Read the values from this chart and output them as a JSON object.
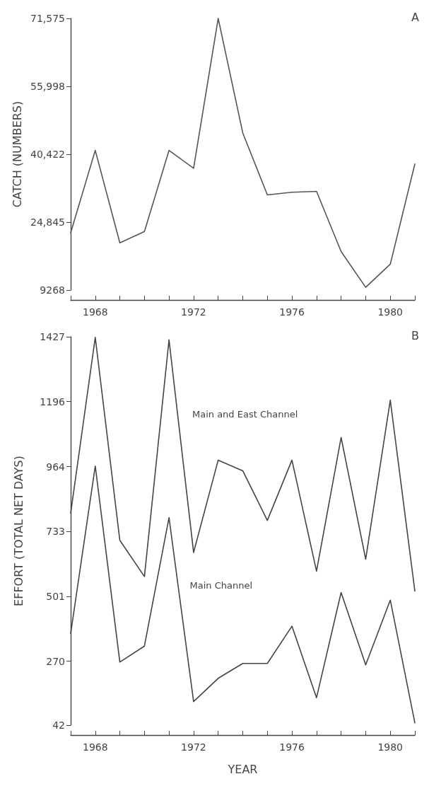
{
  "chart_data": [
    {
      "type": "line",
      "ylabel": "CATCH (NUMBERS)",
      "annotations": [
        "A"
      ],
      "grid": false,
      "legend": false,
      "marker": "none",
      "line_style": "solid",
      "x": [
        1967,
        1968,
        1969,
        1970,
        1971,
        1972,
        1973,
        1974,
        1975,
        1976,
        1977,
        1978,
        1979,
        1980,
        1981
      ],
      "series": [
        {
          "color": "#555555",
          "values": [
            22400,
            41300,
            20100,
            22700,
            41300,
            37200,
            71575,
            45300,
            31100,
            31700,
            31900,
            18100,
            9900,
            15200,
            38200
          ]
        }
      ],
      "xlim": [
        1967,
        1981
      ],
      "xticks": [
        {
          "value": 1967,
          "label": null
        },
        1968,
        {
          "value": 1969,
          "label": null
        },
        {
          "value": 1970,
          "label": null
        },
        {
          "value": 1971,
          "label": null
        },
        1972,
        {
          "value": 1973,
          "label": null
        },
        {
          "value": 1974,
          "label": null
        },
        {
          "value": 1975,
          "label": null
        },
        1976,
        {
          "value": 1977,
          "label": null
        },
        {
          "value": 1978,
          "label": null
        },
        {
          "value": 1979,
          "label": null
        },
        1980,
        {
          "value": 1981,
          "label": null
        }
      ],
      "ylim": [
        9268,
        71575
      ],
      "yticks": [
        9268,
        {
          "value": 24845,
          "label": "24,845"
        },
        {
          "value": 40422,
          "label": "40,422"
        },
        {
          "value": 55998,
          "label": "55,998"
        },
        {
          "value": 71575,
          "label": "71,575"
        }
      ]
    },
    {
      "type": "line",
      "xlabel": "YEAR",
      "ylabel": "EFFORT (TOTAL NET DAYS)",
      "annotations": [
        "B"
      ],
      "grid": false,
      "legend": false,
      "marker": "none",
      "line_style": "solid",
      "x": [
        1967,
        1968,
        1969,
        1970,
        1971,
        1972,
        1973,
        1974,
        1975,
        1976,
        1977,
        1978,
        1979,
        1980,
        1981
      ],
      "series": [
        {
          "name": "Main and East Channel",
          "color": "#444444",
          "values": [
            798,
            1425,
            701,
            572,
            1416,
            658,
            987,
            949,
            772,
            987,
            591,
            1068,
            634,
            1201,
            520
          ]
        },
        {
          "name": "Main Channel",
          "color": "#444444",
          "values": [
            369,
            966,
            267,
            324,
            782,
            126,
            209,
            262,
            262,
            395,
            140,
            515,
            257,
            488,
            50
          ]
        }
      ],
      "xlim": [
        1967,
        1981
      ],
      "xticks": [
        {
          "value": 1967,
          "label": null
        },
        1968,
        {
          "value": 1969,
          "label": null
        },
        {
          "value": 1970,
          "label": null
        },
        {
          "value": 1971,
          "label": null
        },
        1972,
        {
          "value": 1973,
          "label": null
        },
        {
          "value": 1974,
          "label": null
        },
        {
          "value": 1975,
          "label": null
        },
        1976,
        {
          "value": 1977,
          "label": null
        },
        {
          "value": 1978,
          "label": null
        },
        {
          "value": 1979,
          "label": null
        },
        1980,
        {
          "value": 1981,
          "label": null
        }
      ],
      "ylim": [
        42,
        1427
      ],
      "yticks": [
        42,
        270,
        501,
        733,
        964,
        1196,
        1427
      ]
    }
  ]
}
